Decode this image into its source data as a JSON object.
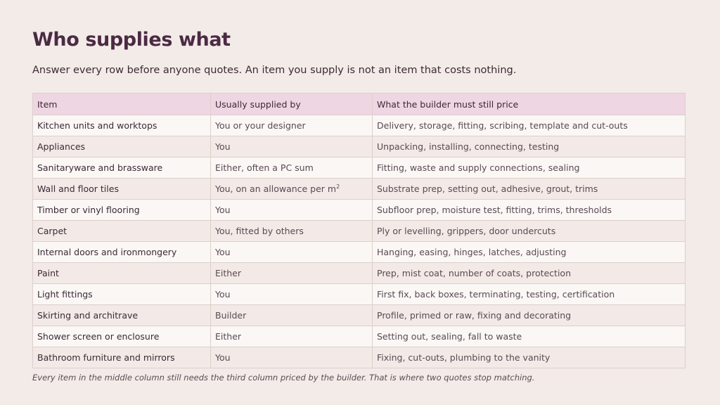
{
  "title": "Who supplies what",
  "subtitle": "Answer every row before anyone quotes. An item you supply is not an item that costs nothing.",
  "table": {
    "headers": [
      "Item",
      "Usually supplied by",
      "What the builder must still price"
    ],
    "rows": [
      {
        "item": "Kitchen units and worktops",
        "supplied_by": "You or your designer",
        "must_price": "Delivery, storage, fitting, scribing, template and cut-outs"
      },
      {
        "item": "Appliances",
        "supplied_by": "You",
        "must_price": "Unpacking, installing, connecting, testing"
      },
      {
        "item": "Sanitaryware and brassware",
        "supplied_by": "Either, often a PC sum",
        "must_price": "Fitting, waste and supply connections, sealing"
      },
      {
        "item": "Wall and floor tiles",
        "supplied_by": "You, on an allowance per m",
        "supplied_by_sup": "2",
        "must_price": "Substrate prep, setting out, adhesive, grout, trims"
      },
      {
        "item": "Timber or vinyl flooring",
        "supplied_by": "You",
        "must_price": "Subfloor prep, moisture test, fitting, trims, thresholds"
      },
      {
        "item": "Carpet",
        "supplied_by": "You, fitted by others",
        "must_price": "Ply or levelling, grippers, door undercuts"
      },
      {
        "item": "Internal doors and ironmongery",
        "supplied_by": "You",
        "must_price": "Hanging, easing, hinges, latches, adjusting"
      },
      {
        "item": "Paint",
        "supplied_by": "Either",
        "must_price": "Prep, mist coat, number of coats, protection"
      },
      {
        "item": "Light fittings",
        "supplied_by": "You",
        "must_price": "First fix, back boxes, terminating, testing, certification"
      },
      {
        "item": "Skirting and architrave",
        "supplied_by": "Builder",
        "must_price": "Profile, primed or raw, fixing and decorating"
      },
      {
        "item": "Shower screen or enclosure",
        "supplied_by": "Either",
        "must_price": "Setting out, sealing, fall to waste"
      },
      {
        "item": "Bathroom furniture and mirrors",
        "supplied_by": "You",
        "must_price": "Fixing, cut-outs, plumbing to the vanity"
      }
    ]
  },
  "footnote": "Every item in the middle column still needs the third column priced by the builder. That is where two quotes stop matching."
}
